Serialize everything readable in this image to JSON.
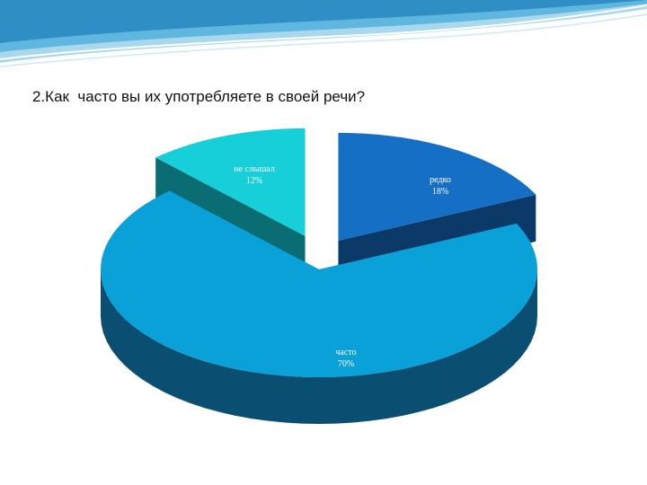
{
  "slide": {
    "title": "2.Как  часто вы их употребляете в своей речи?"
  },
  "colors": {
    "wave_dark": "#2f8fc4",
    "wave_light": "#a9d8ee",
    "title_text": "#111111"
  },
  "chart_data": {
    "type": "pie",
    "style": "3d-exploded",
    "categories": [
      "не слышал",
      "редко",
      "часто"
    ],
    "values": [
      12,
      18,
      70
    ],
    "unit": "%",
    "data_labels": [
      [
        "не слышал",
        "12%"
      ],
      [
        "редко",
        "18%"
      ],
      [
        "часто",
        "70%"
      ]
    ],
    "colors": {
      "top": [
        "#16cfd8",
        "#156fc4",
        "#0aa0d8"
      ],
      "side": [
        "#0a6d74",
        "#0b3a68",
        "#0a4f72"
      ]
    },
    "legend": "none"
  }
}
